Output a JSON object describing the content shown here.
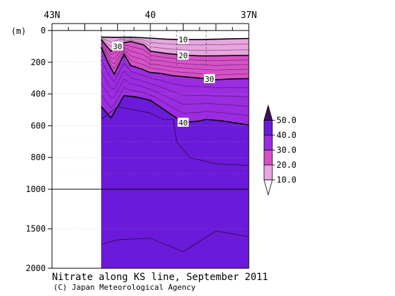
{
  "chart_data": {
    "type": "heatmap",
    "title": "Nitrate along KS line, September 2011",
    "credit": "(C) Japan Meteorological Agency",
    "x_axis": {
      "ticks": [
        "43N",
        "40",
        "37N"
      ],
      "tick_values": [
        43,
        40,
        37
      ],
      "range": [
        43,
        37
      ],
      "position": "top"
    },
    "y_axis": {
      "unit_label": "(m)",
      "ticks": [
        "0",
        "200",
        "400",
        "600",
        "800",
        "1000",
        "1500",
        "2000"
      ],
      "tick_values": [
        0,
        200,
        400,
        600,
        800,
        1000,
        1500,
        2000
      ],
      "range": [
        0,
        2000
      ],
      "scale": "piecewise linear (0-1000 m stretched, 1000-2000 m compressed)",
      "grid": "dotted"
    },
    "data_extent_latitude": [
      41.5,
      37
    ],
    "station_latitudes": [
      41.5,
      40.8,
      40.0,
      39.2,
      38.3,
      37.0
    ],
    "colorbar": {
      "labels": [
        "50.0",
        "40.0",
        "30.0",
        "20.0",
        "10.0"
      ],
      "levels": [
        50,
        40,
        30,
        20,
        10
      ],
      "colors": [
        "#3d0f5c",
        "#6a1ad8",
        "#9b2ce0",
        "#d650c6",
        "#e7a6df",
        "#ffffff"
      ],
      "placement": "right"
    },
    "contour_labels": [
      {
        "text": "10",
        "value": 10
      },
      {
        "text": "20",
        "value": 20
      },
      {
        "text": "30",
        "value": 30
      },
      {
        "text": "30",
        "value": 30
      },
      {
        "text": "40",
        "value": 40
      }
    ],
    "contours": [
      {
        "level": 10,
        "points": [
          [
            41.5,
            42
          ],
          [
            41.0,
            43
          ],
          [
            40.6,
            42
          ],
          [
            40.0,
            48
          ],
          [
            39.5,
            55
          ],
          [
            39.0,
            57
          ],
          [
            38.5,
            57
          ],
          [
            38.0,
            55
          ],
          [
            37.5,
            52
          ],
          [
            37.0,
            50
          ]
        ]
      },
      {
        "level": 20,
        "points": [
          [
            41.5,
            58
          ],
          [
            41.2,
            130
          ],
          [
            40.9,
            80
          ],
          [
            40.6,
            70
          ],
          [
            40.2,
            90
          ],
          [
            40.0,
            130
          ],
          [
            39.5,
            145
          ],
          [
            39.0,
            155
          ],
          [
            38.5,
            160
          ],
          [
            38.0,
            160
          ],
          [
            37.5,
            158
          ],
          [
            37.0,
            157
          ]
        ]
      },
      {
        "level": 30,
        "points": [
          [
            41.5,
            105
          ],
          [
            41.3,
            200
          ],
          [
            41.1,
            275
          ],
          [
            40.8,
            150
          ],
          [
            40.6,
            220
          ],
          [
            40.3,
            240
          ],
          [
            40.0,
            265
          ],
          [
            39.7,
            270
          ],
          [
            39.3,
            285
          ],
          [
            38.5,
            300
          ],
          [
            38.0,
            310
          ],
          [
            37.5,
            305
          ],
          [
            37.0,
            303
          ]
        ]
      },
      {
        "level": 40,
        "points": [
          [
            41.5,
            480
          ],
          [
            41.2,
            550
          ],
          [
            40.8,
            410
          ],
          [
            40.4,
            420
          ],
          [
            40.0,
            440
          ],
          [
            39.5,
            510
          ],
          [
            39.0,
            580
          ],
          [
            38.5,
            570
          ],
          [
            38.3,
            560
          ],
          [
            37.8,
            570
          ],
          [
            37.0,
            595
          ]
        ]
      }
    ],
    "grid": true
  }
}
